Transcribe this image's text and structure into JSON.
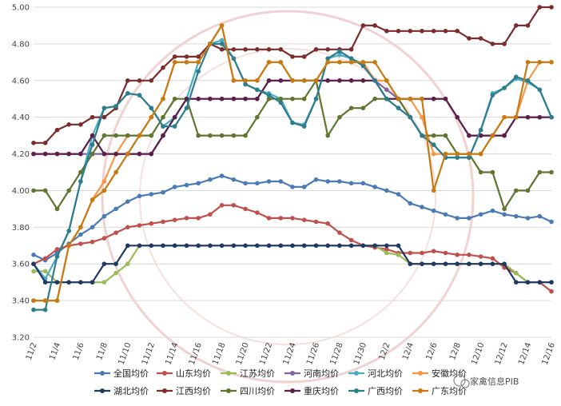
{
  "watermark": {
    "label": "家禽信息PIB",
    "color": "#b71c1c"
  },
  "chart_data": {
    "type": "line",
    "title": "",
    "xlabel": "",
    "ylabel": "",
    "ylim": [
      3.2,
      5.0
    ],
    "yticks": [
      "3.20",
      "3.40",
      "3.60",
      "3.80",
      "4.00",
      "4.20",
      "4.40",
      "4.60",
      "4.80",
      "5.00"
    ],
    "grid": "horizontal",
    "legend_position": "bottom",
    "x": [
      "11/2",
      "11/3",
      "11/4",
      "11/5",
      "11/6",
      "11/7",
      "11/8",
      "11/9",
      "11/10",
      "11/11",
      "11/12",
      "11/13",
      "11/14",
      "11/15",
      "11/16",
      "11/17",
      "11/18",
      "11/19",
      "11/20",
      "11/21",
      "11/22",
      "11/23",
      "11/24",
      "11/25",
      "11/26",
      "11/27",
      "11/28",
      "11/29",
      "11/30",
      "12/1",
      "12/2",
      "12/3",
      "12/4",
      "12/5",
      "12/6",
      "12/7",
      "12/8",
      "12/9",
      "12/10",
      "12/11",
      "12/12",
      "12/13",
      "12/14",
      "12/15",
      "12/16"
    ],
    "xtick_labels": [
      "11/2",
      "11/4",
      "11/6",
      "11/8",
      "11/10",
      "11/12",
      "11/14",
      "11/16",
      "11/18",
      "11/20",
      "11/22",
      "11/24",
      "11/26",
      "11/28",
      "11/30",
      "12/2",
      "12/4",
      "12/6",
      "12/8",
      "12/10",
      "12/12",
      "12/14",
      "12/16"
    ],
    "series": [
      {
        "name": "全国均价",
        "color": "#4a7bb7",
        "marker": "circle",
        "values": [
          3.65,
          3.62,
          3.66,
          3.71,
          3.76,
          3.8,
          3.86,
          3.9,
          3.94,
          3.97,
          3.98,
          3.99,
          4.02,
          4.03,
          4.04,
          4.06,
          4.08,
          4.06,
          4.04,
          4.04,
          4.05,
          4.05,
          4.02,
          4.02,
          4.06,
          4.05,
          4.05,
          4.04,
          4.04,
          4.02,
          4.0,
          3.98,
          3.93,
          3.91,
          3.89,
          3.87,
          3.85,
          3.85,
          3.87,
          3.89,
          3.87,
          3.86,
          3.85,
          3.86,
          3.83
        ]
      },
      {
        "name": "山东均价",
        "color": "#c0504d",
        "marker": "circle",
        "values": [
          3.6,
          3.63,
          3.68,
          3.7,
          3.71,
          3.72,
          3.74,
          3.77,
          3.8,
          3.81,
          3.82,
          3.83,
          3.84,
          3.85,
          3.85,
          3.87,
          3.92,
          3.92,
          3.9,
          3.88,
          3.85,
          3.85,
          3.85,
          3.84,
          3.83,
          3.82,
          3.77,
          3.73,
          3.7,
          3.69,
          3.68,
          3.66,
          3.66,
          3.66,
          3.67,
          3.66,
          3.65,
          3.65,
          3.64,
          3.63,
          3.58,
          3.55,
          3.5,
          3.5,
          3.45
        ]
      },
      {
        "name": "江苏均价",
        "color": "#9bbb59",
        "marker": "circle",
        "values": [
          3.56,
          3.56,
          3.5,
          3.5,
          3.5,
          3.5,
          3.5,
          3.55,
          3.6,
          3.7,
          3.7,
          3.7,
          3.7,
          3.7,
          3.7,
          3.7,
          3.7,
          3.7,
          3.7,
          3.7,
          3.7,
          3.7,
          3.7,
          3.7,
          3.7,
          3.7,
          3.7,
          3.7,
          3.7,
          3.7,
          3.66,
          3.65,
          3.6,
          3.6,
          3.6,
          3.6,
          3.6,
          3.6,
          3.6,
          3.6,
          3.6,
          3.55,
          3.5,
          3.5,
          3.5
        ]
      },
      {
        "name": "河南均价",
        "color": "#8064a2",
        "marker": "circle",
        "values": [
          4.2,
          4.2,
          4.2,
          4.2,
          4.2,
          4.2,
          4.2,
          4.2,
          4.2,
          4.2,
          4.2,
          4.3,
          4.4,
          4.5,
          4.5,
          4.5,
          4.5,
          4.5,
          4.5,
          4.5,
          4.6,
          4.6,
          4.6,
          4.6,
          4.6,
          4.6,
          4.6,
          4.6,
          4.6,
          4.6,
          4.55,
          4.5,
          4.5,
          4.5,
          4.5,
          4.5,
          4.4,
          4.3,
          4.3,
          4.3,
          4.3,
          4.4,
          4.4,
          4.4,
          4.4
        ]
      },
      {
        "name": "河北均价",
        "color": "#4bacc6",
        "marker": "circle",
        "values": [
          3.6,
          3.52,
          3.64,
          3.78,
          4.05,
          4.3,
          4.45,
          4.46,
          4.53,
          4.52,
          4.45,
          4.35,
          4.4,
          4.5,
          4.7,
          4.8,
          4.82,
          4.72,
          4.58,
          4.55,
          4.53,
          4.5,
          4.37,
          4.36,
          4.5,
          4.72,
          4.74,
          4.72,
          4.69,
          4.6,
          4.5,
          4.45,
          4.4,
          4.3,
          4.25,
          4.18,
          4.18,
          4.18,
          4.33,
          4.53,
          4.56,
          4.61,
          4.59,
          4.55,
          4.4
        ]
      },
      {
        "name": "安徽均价",
        "color": "#f79646",
        "marker": "circle",
        "values": [
          3.4,
          3.4,
          3.4,
          3.7,
          3.8,
          3.95,
          4.05,
          4.2,
          4.3,
          4.3,
          4.4,
          4.5,
          4.7,
          4.7,
          4.7,
          4.8,
          4.9,
          4.6,
          4.6,
          4.6,
          4.7,
          4.7,
          4.6,
          4.6,
          4.6,
          4.7,
          4.7,
          4.7,
          4.7,
          4.6,
          4.6,
          4.5,
          4.5,
          4.4,
          4.2,
          4.2,
          4.2,
          4.2,
          4.2,
          4.3,
          4.4,
          4.4,
          4.6,
          4.7,
          4.7
        ]
      },
      {
        "name": "湖北均价",
        "color": "#1f3864",
        "marker": "circle",
        "values": [
          3.6,
          3.5,
          3.5,
          3.5,
          3.5,
          3.5,
          3.6,
          3.6,
          3.7,
          3.7,
          3.7,
          3.7,
          3.7,
          3.7,
          3.7,
          3.7,
          3.7,
          3.7,
          3.7,
          3.7,
          3.7,
          3.7,
          3.7,
          3.7,
          3.7,
          3.7,
          3.7,
          3.7,
          3.7,
          3.7,
          3.7,
          3.7,
          3.6,
          3.6,
          3.6,
          3.6,
          3.6,
          3.6,
          3.6,
          3.6,
          3.6,
          3.5,
          3.5,
          3.5,
          3.5
        ]
      },
      {
        "name": "江西均价",
        "color": "#7b2c2c",
        "marker": "circle",
        "values": [
          4.26,
          4.26,
          4.33,
          4.36,
          4.36,
          4.4,
          4.4,
          4.45,
          4.6,
          4.6,
          4.6,
          4.67,
          4.73,
          4.73,
          4.73,
          4.8,
          4.77,
          4.77,
          4.77,
          4.77,
          4.77,
          4.77,
          4.73,
          4.73,
          4.77,
          4.77,
          4.77,
          4.77,
          4.9,
          4.9,
          4.87,
          4.87,
          4.87,
          4.87,
          4.87,
          4.87,
          4.87,
          4.83,
          4.83,
          4.8,
          4.8,
          4.9,
          4.9,
          5.0,
          5.0
        ]
      },
      {
        "name": "四川均价",
        "color": "#5f7530",
        "marker": "circle",
        "values": [
          4.0,
          4.0,
          3.9,
          4.0,
          4.1,
          4.2,
          4.3,
          4.3,
          4.3,
          4.3,
          4.3,
          4.4,
          4.5,
          4.5,
          4.3,
          4.3,
          4.3,
          4.3,
          4.3,
          4.4,
          4.5,
          4.5,
          4.5,
          4.5,
          4.6,
          4.3,
          4.4,
          4.45,
          4.45,
          4.5,
          4.5,
          4.5,
          4.4,
          4.3,
          4.3,
          4.3,
          4.2,
          4.2,
          4.1,
          4.1,
          3.9,
          4.0,
          4.0,
          4.1,
          4.1
        ]
      },
      {
        "name": "重庆均价",
        "color": "#5b1f4a",
        "marker": "circle",
        "values": [
          4.2,
          4.2,
          4.2,
          4.2,
          4.2,
          4.3,
          4.2,
          4.2,
          4.2,
          4.2,
          4.2,
          4.3,
          4.4,
          4.5,
          4.5,
          4.5,
          4.5,
          4.5,
          4.5,
          4.5,
          4.6,
          4.6,
          4.6,
          4.6,
          4.6,
          4.6,
          4.6,
          4.6,
          4.6,
          4.6,
          4.5,
          4.5,
          4.5,
          4.5,
          4.5,
          4.5,
          4.4,
          4.3,
          4.3,
          4.3,
          4.3,
          4.4,
          4.4,
          4.4,
          4.4
        ]
      },
      {
        "name": "广西均价",
        "color": "#2e7d8c",
        "marker": "circle",
        "values": [
          3.35,
          3.35,
          3.64,
          3.78,
          4.05,
          4.25,
          4.45,
          4.46,
          4.53,
          4.52,
          4.45,
          4.35,
          4.35,
          4.45,
          4.65,
          4.8,
          4.8,
          4.72,
          4.58,
          4.55,
          4.52,
          4.48,
          4.37,
          4.35,
          4.5,
          4.72,
          4.76,
          4.72,
          4.68,
          4.6,
          4.5,
          4.45,
          4.4,
          4.3,
          4.25,
          4.18,
          4.18,
          4.18,
          4.33,
          4.52,
          4.56,
          4.62,
          4.6,
          4.55,
          4.4
        ]
      },
      {
        "name": "广东均价",
        "color": "#c87a12",
        "marker": "circle",
        "values": [
          3.4,
          3.4,
          3.4,
          3.7,
          3.8,
          3.95,
          4.0,
          4.1,
          4.2,
          4.3,
          4.4,
          4.5,
          4.7,
          4.7,
          4.7,
          4.8,
          4.9,
          4.6,
          4.6,
          4.6,
          4.7,
          4.7,
          4.6,
          4.6,
          4.6,
          4.7,
          4.7,
          4.7,
          4.7,
          4.7,
          4.6,
          4.5,
          4.5,
          4.5,
          4.0,
          4.2,
          4.2,
          4.2,
          4.2,
          4.3,
          4.4,
          4.4,
          4.7,
          4.7,
          4.7
        ]
      }
    ]
  }
}
